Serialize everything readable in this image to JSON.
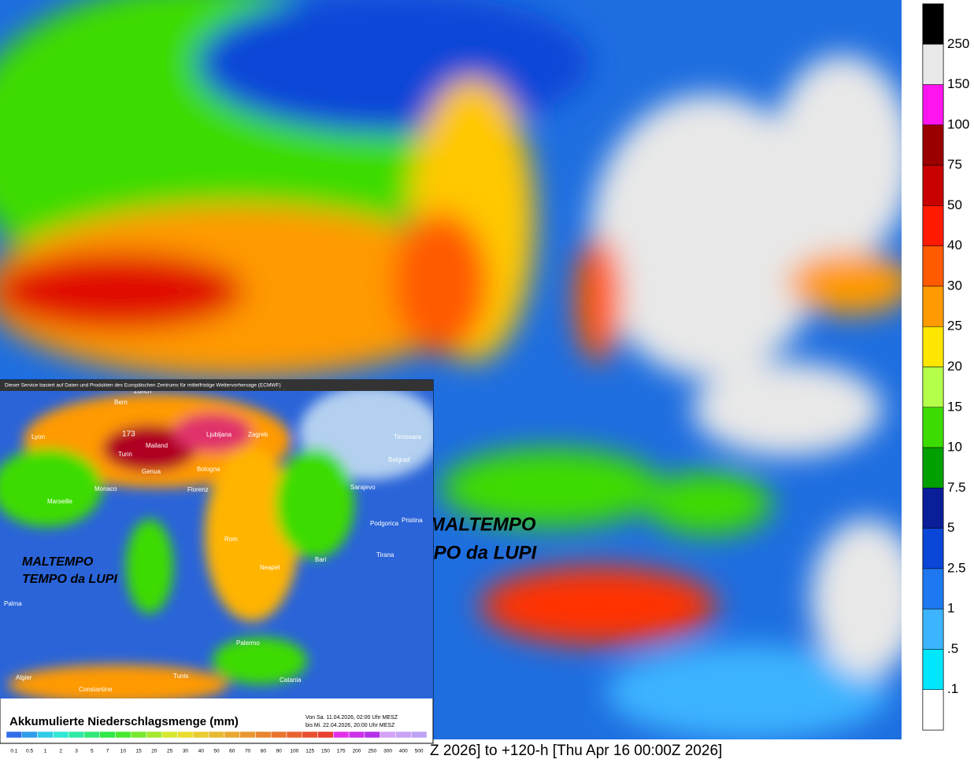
{
  "colorbar": {
    "labels": [
      "250",
      "150",
      "100",
      "75",
      "50",
      "40",
      "30",
      "25",
      "20",
      "15",
      "10",
      "7.5",
      "5",
      "2.5",
      "1",
      ".5",
      ".1"
    ],
    "colors": [
      "#000000",
      "#e8e8e8",
      "#ff14f0",
      "#9a0000",
      "#c80000",
      "#ff1a00",
      "#ff5a00",
      "#ff9a00",
      "#ffe600",
      "#b4ff4a",
      "#3cdc00",
      "#00a000",
      "#0a1e9a",
      "#0a46d8",
      "#1e78f0",
      "#3cb4ff",
      "#00e6ff",
      "#ffffff"
    ]
  },
  "main_map": {
    "watermark_1": "MALTEMPO",
    "watermark_2": "TEMPO da LUPI",
    "caption": "Z 2026] to +120-h [Thu Apr 16 00:00Z 2026]"
  },
  "inset": {
    "note": "Dieser Service basiert auf Daten und Produkten des Europäischen Zentrums für mittelfristige Wettervorhersage (ECMWF)",
    "title": "Akkumulierte Niederschlagsmenge (mm)",
    "from": "Von Sa. 11.04.2026, 02:00 Uhr MESZ",
    "to": "bis Mi. 22.04.2026, 20:00 Uhr MESZ",
    "watermark_1": "MALTEMPO",
    "watermark_2": "TEMPO da LUPI",
    "max_label": "173",
    "cities": [
      "Bern",
      "Zurich",
      "Ljubljana",
      "Zagreb",
      "Timisoara",
      "Lyon",
      "Turin",
      "Mailand",
      "Genua",
      "Bologna",
      "Belgrad",
      "Sarajevo",
      "Marseille",
      "Monaco",
      "Florenz",
      "Podgorica",
      "Pristina",
      "Rom",
      "Tirana",
      "Neapel",
      "Bari",
      "Palma",
      "Palermo",
      "Catania",
      "Algier",
      "Tunis",
      "Constantine"
    ],
    "scale": [
      "0.1",
      "0.5",
      "1",
      "2",
      "3",
      "5",
      "7",
      "10",
      "15",
      "20",
      "25",
      "30",
      "40",
      "50",
      "60",
      "70",
      "80",
      "90",
      "100",
      "125",
      "150",
      "175",
      "200",
      "250",
      "300",
      "400",
      "500"
    ]
  }
}
